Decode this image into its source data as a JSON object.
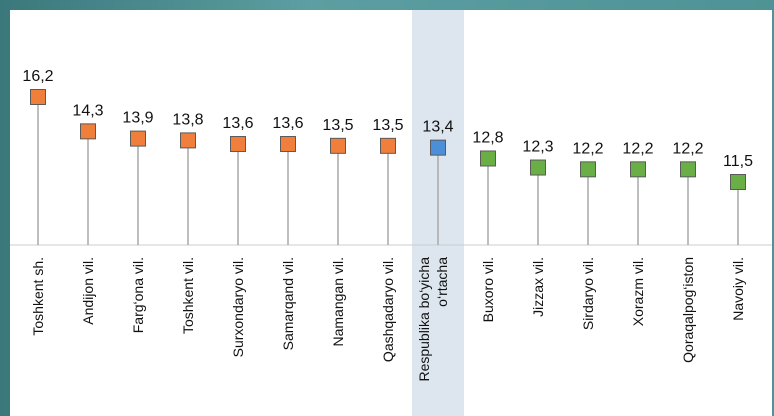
{
  "chart_data": {
    "type": "lollipop",
    "title": "",
    "xlabel": "",
    "ylabel": "",
    "ylim": [
      0,
      18
    ],
    "grid": false,
    "legend": "none",
    "highlight_category": "Respublika bo‘yicha o‘rtacha",
    "categories": [
      "Toshkent sh.",
      "Andijon vil.",
      "Farg‘ona vil.",
      "Toshkent vil.",
      "Surxondaryo vil.",
      "Samarqand vil.",
      "Namangan vil.",
      "Qashqadaryo vil.",
      "Respublika bo‘yicha o‘rtacha",
      "Buxoro vil.",
      "Jizzax vil.",
      "Sirdaryo vil.",
      "Xorazm vil.",
      "Qoraqalpog‘iston",
      "Navoiy vil."
    ],
    "values": [
      16.2,
      14.3,
      13.9,
      13.8,
      13.6,
      13.6,
      13.5,
      13.5,
      13.4,
      12.8,
      12.3,
      12.2,
      12.2,
      12.2,
      11.5
    ],
    "value_labels": [
      "16,2",
      "14,3",
      "13,9",
      "13,8",
      "13,6",
      "13,6",
      "13,5",
      "13,5",
      "13,4",
      "12,8",
      "12,3",
      "12,2",
      "12,2",
      "12,2",
      "11,5"
    ],
    "marker_colors": {
      "above": "#f07f3c",
      "average": "#4a8fd8",
      "below": "#6aaf45"
    },
    "marker_groups": [
      "above",
      "above",
      "above",
      "above",
      "above",
      "above",
      "above",
      "above",
      "average",
      "below",
      "below",
      "below",
      "below",
      "below",
      "below"
    ]
  }
}
